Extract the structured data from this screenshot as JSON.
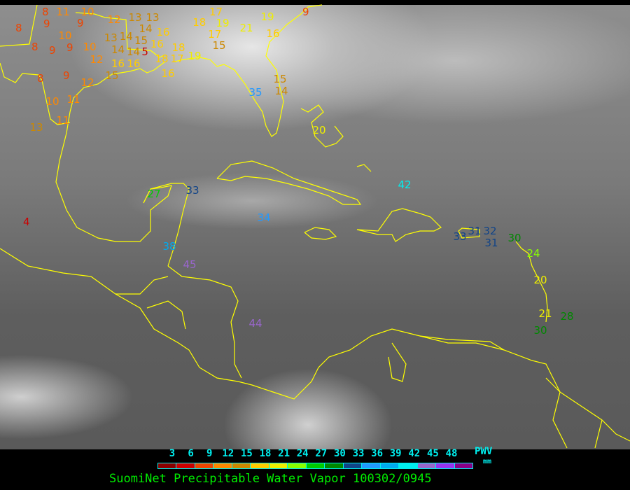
{
  "title": "SuomiNet Precipitable Water Vapor 100302/0945",
  "legend": {
    "unit_label": "PWV",
    "unit": "mm",
    "ticks": [
      "3",
      "6",
      "9",
      "12",
      "15",
      "18",
      "21",
      "24",
      "27",
      "30",
      "33",
      "36",
      "39",
      "42",
      "45",
      "48"
    ],
    "colors": [
      "#8b0000",
      "#cc0000",
      "#ee4400",
      "#ff8800",
      "#cc8800",
      "#ffcc00",
      "#eeee00",
      "#88ff00",
      "#00cc00",
      "#008800",
      "#114488",
      "#2299ff",
      "#00aaee",
      "#00eeee",
      "#9966cc",
      "#9933ee",
      "#880088"
    ]
  },
  "coastline_color": "#ffff00",
  "stations": [
    "8",
    "11",
    "10",
    "9",
    "12",
    "13",
    "13",
    "8",
    "9",
    "10",
    "9",
    "10",
    "8",
    "9",
    "13",
    "14",
    "14",
    "16",
    "15",
    "16",
    "14",
    "14",
    "5",
    "18",
    "12",
    "16",
    "16",
    "18",
    "17",
    "19",
    "18",
    "17",
    "19",
    "17",
    "15",
    "21",
    "19",
    "16",
    "9",
    "8",
    "9",
    "15",
    "16",
    "12",
    "11",
    "10",
    "11",
    "13",
    "35",
    "15",
    "14",
    "20",
    "4",
    "27",
    "33",
    "34",
    "38",
    "45",
    "44",
    "42",
    "33",
    "31",
    "32",
    "31",
    "30",
    "24",
    "20",
    "21",
    "28",
    "30"
  ]
}
